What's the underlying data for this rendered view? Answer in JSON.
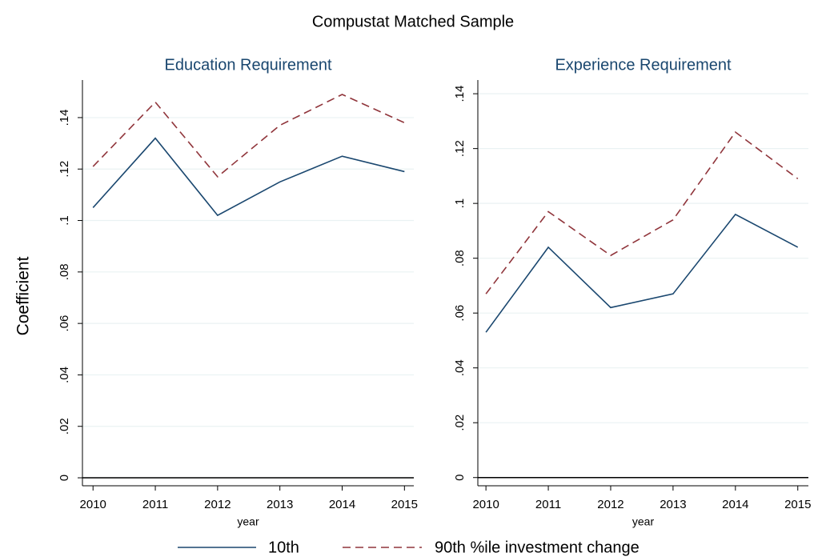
{
  "title": "Compustat Matched Sample",
  "ylabel": "Coefficient",
  "chart_data": [
    {
      "type": "line",
      "title": "Education Requirement",
      "xlabel": "year",
      "x": [
        2010,
        2011,
        2012,
        2013,
        2014,
        2015
      ],
      "series": [
        {
          "name": "10th",
          "color": "#1a476f",
          "dash": "solid",
          "values": [
            0.105,
            0.132,
            0.102,
            0.115,
            0.125,
            0.119
          ]
        },
        {
          "name": "90th %ile investment change",
          "color": "#90353b",
          "dash": "dashed",
          "values": [
            0.121,
            0.146,
            0.117,
            0.137,
            0.149,
            0.138
          ]
        }
      ],
      "xlim": [
        2009.83,
        2015.15
      ],
      "xticks": [
        2010,
        2011,
        2012,
        2013,
        2014,
        2015
      ],
      "ylim": [
        -0.0031,
        0.1546
      ],
      "yticks": [
        0,
        {
          "value": 0.02,
          "label": ".02"
        },
        {
          "value": 0.04,
          "label": ".04"
        },
        {
          "value": 0.06,
          "label": ".06"
        },
        {
          "value": 0.08,
          "label": ".08"
        },
        {
          "value": 0.1,
          "label": ".1"
        },
        {
          "value": 0.12,
          "label": ".12"
        },
        {
          "value": 0.14,
          "label": ".14"
        }
      ],
      "grid": true,
      "reference_line": 0
    },
    {
      "type": "line",
      "title": "Experience Requirement",
      "xlabel": "year",
      "x": [
        2010,
        2011,
        2012,
        2013,
        2014,
        2015
      ],
      "series": [
        {
          "name": "10th",
          "color": "#1a476f",
          "dash": "solid",
          "values": [
            0.053,
            0.084,
            0.062,
            0.067,
            0.096,
            0.084
          ]
        },
        {
          "name": "90th %ile investment change",
          "color": "#90353b",
          "dash": "dashed",
          "values": [
            0.067,
            0.097,
            0.081,
            0.094,
            0.126,
            0.109
          ]
        }
      ],
      "xlim": [
        2009.87,
        2015.17
      ],
      "xticks": [
        2010,
        2011,
        2012,
        2013,
        2014,
        2015
      ],
      "ylim": [
        -0.003,
        0.145
      ],
      "yticks": [
        0,
        {
          "value": 0.02,
          "label": ".02"
        },
        {
          "value": 0.04,
          "label": ".04"
        },
        {
          "value": 0.06,
          "label": ".06"
        },
        {
          "value": 0.08,
          "label": ".08"
        },
        {
          "value": 0.1,
          "label": ".1"
        },
        {
          "value": 0.12,
          "label": ".12"
        },
        {
          "value": 0.14,
          "label": ".14"
        }
      ],
      "grid": true,
      "reference_line": 0
    }
  ]
}
